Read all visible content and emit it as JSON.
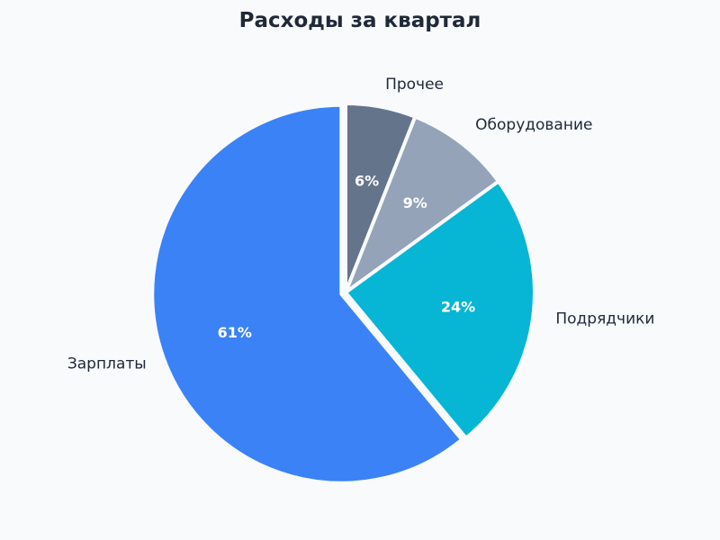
{
  "chart_data": {
    "type": "pie",
    "title": "Расходы за квартал",
    "slices": [
      {
        "label": "Прочее",
        "value": 6,
        "pct_label": "6%",
        "color": "#64748b",
        "explode": false
      },
      {
        "label": "Оборудование",
        "value": 9,
        "pct_label": "9%",
        "color": "#94a3b8",
        "explode": false
      },
      {
        "label": "Подрядчики",
        "value": 24,
        "pct_label": "24%",
        "color": "#06b6d4",
        "explode": false
      },
      {
        "label": "Зарплаты",
        "value": 61,
        "pct_label": "61%",
        "color": "#3b82f6",
        "explode": true
      }
    ],
    "start": "12 o'clock",
    "direction": "clockwise",
    "background": "#f8fafc"
  }
}
